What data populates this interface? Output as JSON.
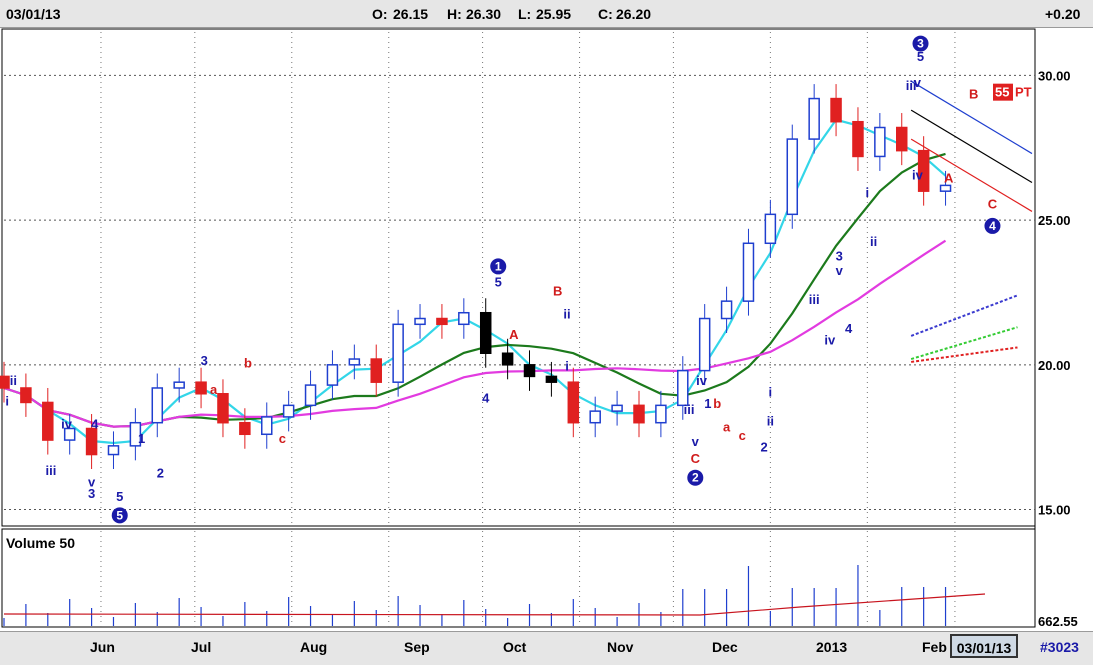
{
  "header": {
    "date": "03/01/13",
    "open_label": "O:",
    "open": "26.15",
    "high_label": "H:",
    "high": "26.30",
    "low_label": "L:",
    "low": "25.95",
    "close_label": "C:",
    "close": "26.20",
    "change": "+0.20"
  },
  "footer": {
    "months": [
      "Jun",
      "Jul",
      "Aug",
      "Sep",
      "Oct",
      "Nov",
      "Dec",
      "2013",
      "Feb"
    ],
    "current_date": "03/01/13",
    "count": "#3023"
  },
  "chart_data": {
    "type": "candlestick",
    "y_axis_ticks": [
      "30.00",
      "25.00",
      "20.00",
      "15.00"
    ],
    "ylim": [
      14.5,
      31.5
    ],
    "price_badge": {
      "value": "55",
      "suffix": "PT"
    },
    "volume": {
      "title": "Volume 50",
      "last_value": "662.55"
    },
    "x_start": "2012-05-01",
    "series": [
      {
        "name": "price",
        "values": [
          {
            "x": "2012-05-01",
            "o": 19.6,
            "c": 19.2
          },
          {
            "x": "2012-05-08",
            "o": 19.2,
            "c": 18.7
          },
          {
            "x": "2012-05-15",
            "o": 18.7,
            "c": 17.4
          },
          {
            "x": "2012-05-22",
            "o": 17.4,
            "c": 17.8
          },
          {
            "x": "2012-05-29",
            "o": 17.8,
            "c": 16.9
          },
          {
            "x": "2012-06-05",
            "o": 16.9,
            "c": 17.2
          },
          {
            "x": "2012-06-12",
            "o": 17.2,
            "c": 18.0
          },
          {
            "x": "2012-06-19",
            "o": 18.0,
            "c": 19.2
          },
          {
            "x": "2012-06-26",
            "o": 19.2,
            "c": 19.4
          },
          {
            "x": "2012-07-03",
            "o": 19.4,
            "c": 19.0
          },
          {
            "x": "2012-07-10",
            "o": 19.0,
            "c": 18.0
          },
          {
            "x": "2012-07-17",
            "o": 18.0,
            "c": 17.6
          },
          {
            "x": "2012-07-24",
            "o": 17.6,
            "c": 18.2
          },
          {
            "x": "2012-07-31",
            "o": 18.2,
            "c": 18.6
          },
          {
            "x": "2012-08-07",
            "o": 18.6,
            "c": 19.3
          },
          {
            "x": "2012-08-14",
            "o": 19.3,
            "c": 20.0
          },
          {
            "x": "2012-08-21",
            "o": 20.0,
            "c": 20.2
          },
          {
            "x": "2012-08-28",
            "o": 20.2,
            "c": 19.4
          },
          {
            "x": "2012-09-04",
            "o": 19.4,
            "c": 21.4
          },
          {
            "x": "2012-09-11",
            "o": 21.4,
            "c": 21.6
          },
          {
            "x": "2012-09-18",
            "o": 21.6,
            "c": 21.4
          },
          {
            "x": "2012-09-25",
            "o": 21.4,
            "c": 21.8
          },
          {
            "x": "2012-10-02",
            "o": 21.8,
            "c": 20.4
          },
          {
            "x": "2012-10-09",
            "o": 20.4,
            "c": 20.0
          },
          {
            "x": "2012-10-16",
            "o": 20.0,
            "c": 19.6
          },
          {
            "x": "2012-10-23",
            "o": 19.6,
            "c": 19.4
          },
          {
            "x": "2012-10-30",
            "o": 19.4,
            "c": 18.0
          },
          {
            "x": "2012-11-06",
            "o": 18.0,
            "c": 18.4
          },
          {
            "x": "2012-11-13",
            "o": 18.4,
            "c": 18.6
          },
          {
            "x": "2012-11-20",
            "o": 18.6,
            "c": 18.0
          },
          {
            "x": "2012-11-27",
            "o": 18.0,
            "c": 18.6
          },
          {
            "x": "2012-12-04",
            "o": 18.6,
            "c": 19.8
          },
          {
            "x": "2012-12-11",
            "o": 19.8,
            "c": 21.6
          },
          {
            "x": "2012-12-18",
            "o": 21.6,
            "c": 22.2
          },
          {
            "x": "2012-12-25",
            "o": 22.2,
            "c": 24.2
          },
          {
            "x": "2013-01-01",
            "o": 24.2,
            "c": 25.2
          },
          {
            "x": "2013-01-08",
            "o": 25.2,
            "c": 27.8
          },
          {
            "x": "2013-01-15",
            "o": 27.8,
            "c": 29.2
          },
          {
            "x": "2013-01-22",
            "o": 29.2,
            "c": 28.4
          },
          {
            "x": "2013-01-29",
            "o": 28.4,
            "c": 27.2
          },
          {
            "x": "2013-02-05",
            "o": 27.2,
            "c": 28.2
          },
          {
            "x": "2013-02-12",
            "o": 28.2,
            "c": 27.4
          },
          {
            "x": "2013-02-19",
            "o": 27.4,
            "c": 26.0
          },
          {
            "x": "2013-02-26",
            "o": 26.0,
            "c": 26.2
          }
        ]
      }
    ],
    "wave_labels": [
      {
        "text": "ii",
        "x": "2012-05-04",
        "y": 19.3,
        "color": "blue"
      },
      {
        "text": "i",
        "x": "2012-05-02",
        "y": 18.6,
        "color": "blue"
      },
      {
        "text": "iii",
        "x": "2012-05-16",
        "y": 16.2,
        "color": "blue"
      },
      {
        "text": "iv",
        "x": "2012-05-21",
        "y": 17.8,
        "color": "blue"
      },
      {
        "text": "4",
        "x": "2012-05-30",
        "y": 17.8,
        "color": "blue"
      },
      {
        "text": "v",
        "x": "2012-05-29",
        "y": 15.8,
        "color": "blue"
      },
      {
        "text": "3",
        "x": "2012-05-29",
        "y": 15.4,
        "color": "blue"
      },
      {
        "text": "1",
        "x": "2012-06-14",
        "y": 17.3,
        "color": "blue"
      },
      {
        "text": "2",
        "x": "2012-06-20",
        "y": 16.1,
        "color": "blue"
      },
      {
        "text": "5",
        "x": "2012-06-07",
        "y": 15.3,
        "color": "blue"
      },
      {
        "text": "3",
        "x": "2012-07-04",
        "y": 20.0,
        "color": "blue"
      },
      {
        "text": "b",
        "x": "2012-07-18",
        "y": 19.9,
        "color": "red"
      },
      {
        "text": "a",
        "x": "2012-07-07",
        "y": 19.0,
        "color": "red"
      },
      {
        "text": "c",
        "x": "2012-07-29",
        "y": 17.3,
        "color": "red"
      },
      {
        "text": "4",
        "x": "2012-10-02",
        "y": 18.7,
        "color": "blue"
      },
      {
        "text": "5",
        "x": "2012-10-06",
        "y": 22.7,
        "color": "blue"
      },
      {
        "text": "A",
        "x": "2012-10-11",
        "y": 20.9,
        "color": "red"
      },
      {
        "text": "B",
        "x": "2012-10-25",
        "y": 22.4,
        "color": "red"
      },
      {
        "text": "ii",
        "x": "2012-10-28",
        "y": 21.6,
        "color": "blue"
      },
      {
        "text": "i",
        "x": "2012-10-28",
        "y": 19.8,
        "color": "blue"
      },
      {
        "text": "iv",
        "x": "2012-12-10",
        "y": 19.3,
        "color": "blue"
      },
      {
        "text": "iii",
        "x": "2012-12-06",
        "y": 18.3,
        "color": "blue"
      },
      {
        "text": "v",
        "x": "2012-12-08",
        "y": 17.2,
        "color": "blue"
      },
      {
        "text": "C",
        "x": "2012-12-08",
        "y": 16.6,
        "color": "red"
      },
      {
        "text": "1",
        "x": "2012-12-12",
        "y": 18.5,
        "color": "blue"
      },
      {
        "text": "b",
        "x": "2012-12-15",
        "y": 18.5,
        "color": "red"
      },
      {
        "text": "a",
        "x": "2012-12-18",
        "y": 17.7,
        "color": "red"
      },
      {
        "text": "c",
        "x": "2012-12-23",
        "y": 17.4,
        "color": "red"
      },
      {
        "text": "i",
        "x": "2013-01-01",
        "y": 18.9,
        "color": "blue"
      },
      {
        "text": "ii",
        "x": "2013-01-01",
        "y": 17.9,
        "color": "blue"
      },
      {
        "text": "2",
        "x": "2012-12-30",
        "y": 17.0,
        "color": "blue"
      },
      {
        "text": "iii",
        "x": "2013-01-15",
        "y": 22.1,
        "color": "blue"
      },
      {
        "text": "3",
        "x": "2013-01-23",
        "y": 23.6,
        "color": "blue"
      },
      {
        "text": "v",
        "x": "2013-01-23",
        "y": 23.1,
        "color": "blue"
      },
      {
        "text": "4",
        "x": "2013-01-26",
        "y": 21.1,
        "color": "blue"
      },
      {
        "text": "iv",
        "x": "2013-01-20",
        "y": 20.7,
        "color": "blue"
      },
      {
        "text": "i",
        "x": "2013-02-01",
        "y": 25.8,
        "color": "blue"
      },
      {
        "text": "ii",
        "x": "2013-02-03",
        "y": 24.1,
        "color": "blue"
      },
      {
        "text": "5",
        "x": "2013-02-18",
        "y": 30.5,
        "color": "blue"
      },
      {
        "text": "iii",
        "x": "2013-02-15",
        "y": 29.5,
        "color": "blue"
      },
      {
        "text": "v",
        "x": "2013-02-17",
        "y": 29.6,
        "color": "blue"
      },
      {
        "text": "iv",
        "x": "2013-02-17",
        "y": 26.4,
        "color": "blue"
      },
      {
        "text": "A",
        "x": "2013-02-27",
        "y": 26.3,
        "color": "red"
      },
      {
        "text": "B",
        "x": "2013-03-07",
        "y": 29.2,
        "color": "red"
      },
      {
        "text": "C",
        "x": "2013-03-13",
        "y": 25.4,
        "color": "red"
      }
    ],
    "wave_circles": [
      {
        "text": "5",
        "x": "2012-06-07",
        "y": 14.8
      },
      {
        "text": "1",
        "x": "2012-10-06",
        "y": 23.4
      },
      {
        "text": "2",
        "x": "2012-12-08",
        "y": 16.1
      },
      {
        "text": "3",
        "x": "2013-02-18",
        "y": 31.1
      },
      {
        "text": "4",
        "x": "2013-03-13",
        "y": 24.8
      }
    ]
  }
}
